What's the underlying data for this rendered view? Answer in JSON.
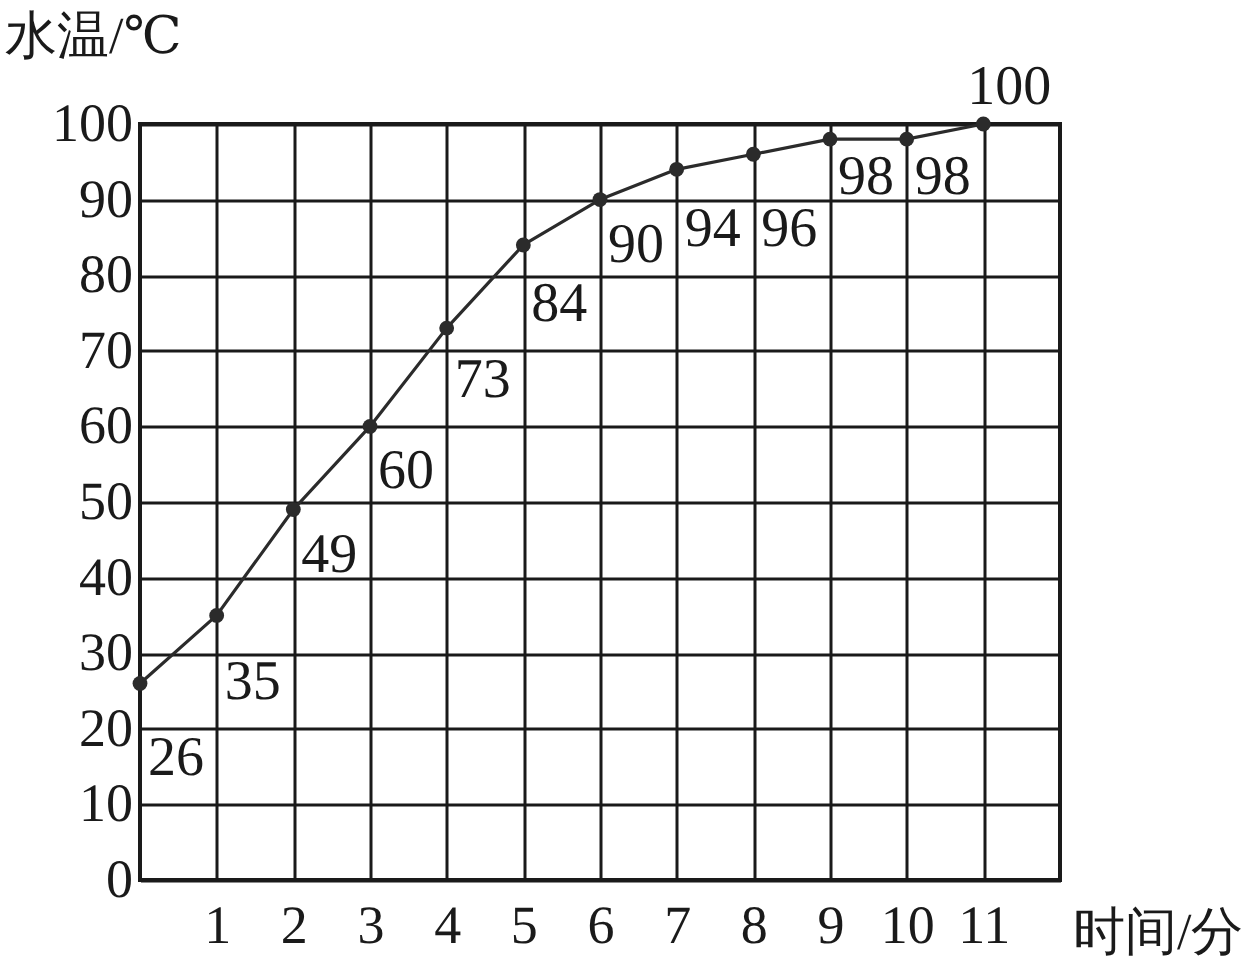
{
  "chart_data": {
    "type": "line",
    "xlabel": "时间/分",
    "ylabel": "水温/℃",
    "x": [
      0,
      1,
      2,
      3,
      4,
      5,
      6,
      7,
      8,
      9,
      10,
      11
    ],
    "series": [
      {
        "color": "#2b2b2b",
        "values": [
          26,
          35,
          49,
          60,
          73,
          84,
          90,
          94,
          96,
          98,
          98,
          100
        ]
      }
    ],
    "xlim": [
      0,
      12
    ],
    "xticks": [
      1,
      2,
      3,
      4,
      5,
      6,
      7,
      8,
      9,
      10,
      11
    ],
    "ylim": [
      0,
      100
    ],
    "yticks": [
      0,
      10,
      20,
      30,
      40,
      50,
      60,
      70,
      80,
      90,
      100
    ],
    "grid": true,
    "marker": "circle",
    "line_style": "solid",
    "data_labels": true
  }
}
